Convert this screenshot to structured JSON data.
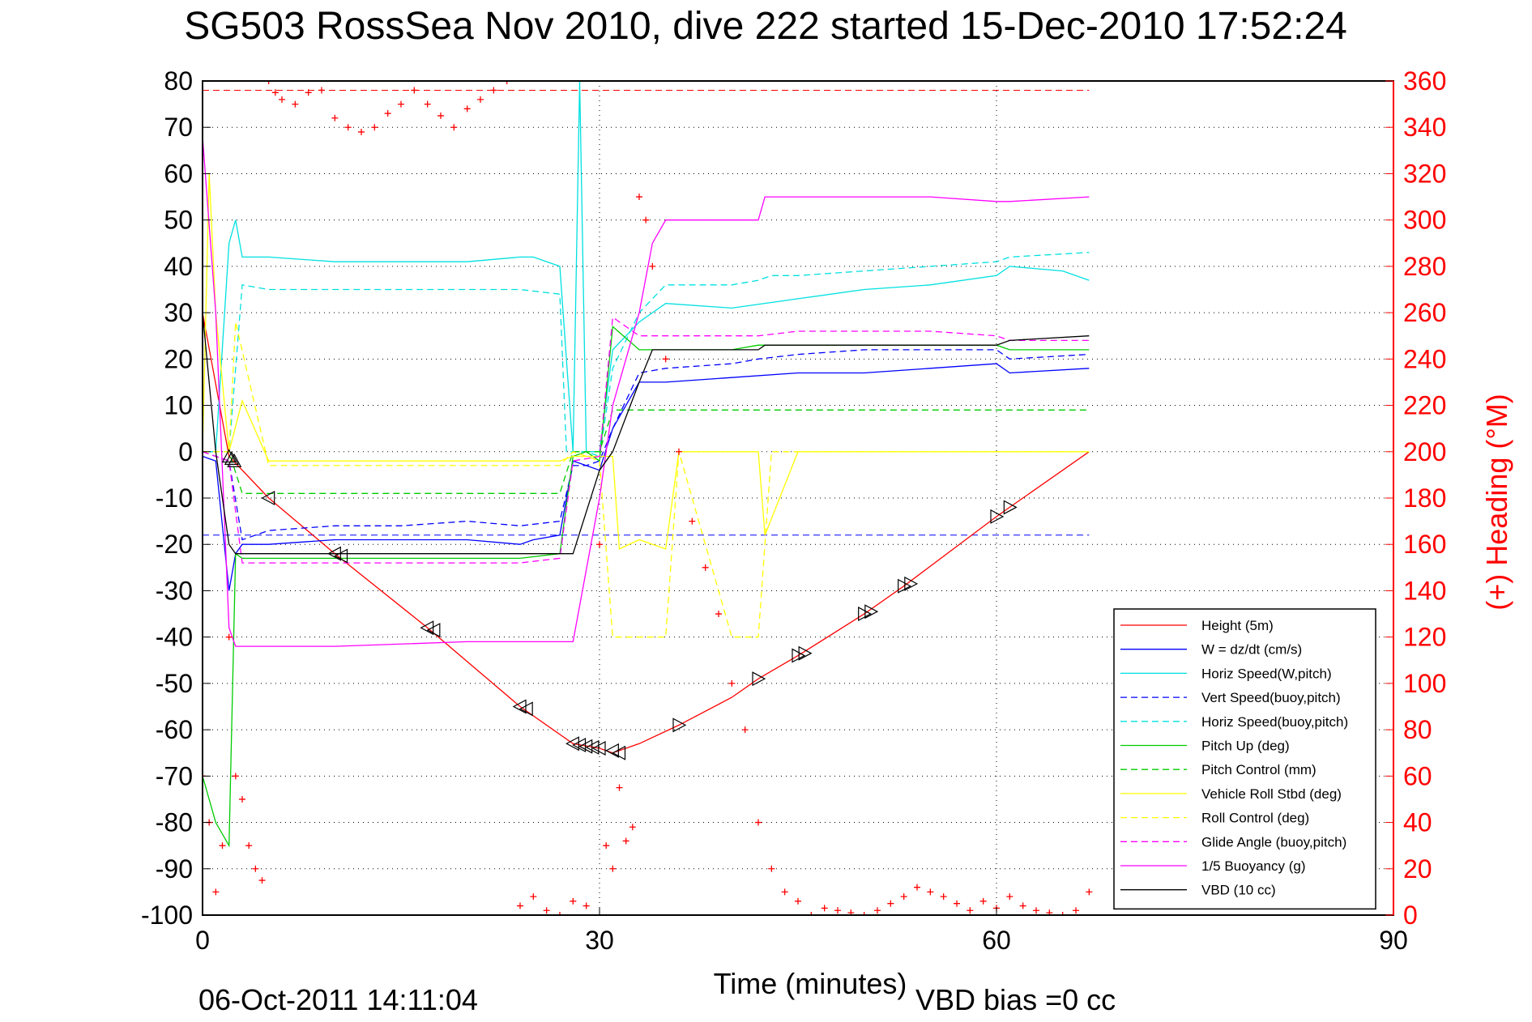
{
  "chart_data": {
    "type": "line",
    "title": "SG503 RossSea Nov 2010, dive 222 started 15-Dec-2010 17:52:24",
    "xlabel": "Time (minutes)",
    "ylabel": "",
    "y2label": "(+) Heading (°M)",
    "xlim": [
      0,
      90
    ],
    "ylim": [
      -100,
      80
    ],
    "y2lim": [
      0,
      360
    ],
    "xticks": [
      "0",
      "30",
      "60",
      "90"
    ],
    "xtick_values": [
      0,
      30,
      60,
      90
    ],
    "yticks": [
      "80",
      "70",
      "60",
      "50",
      "40",
      "30",
      "20",
      "10",
      "0",
      "-10",
      "-20",
      "-30",
      "-40",
      "-50",
      "-60",
      "-70",
      "-80",
      "-90",
      "-100"
    ],
    "ytick_values": [
      80,
      70,
      60,
      50,
      40,
      30,
      20,
      10,
      0,
      -10,
      -20,
      -30,
      -40,
      -50,
      -60,
      -70,
      -80,
      -90,
      -100
    ],
    "y2ticks": [
      "360",
      "340",
      "320",
      "300",
      "280",
      "260",
      "240",
      "220",
      "200",
      "180",
      "160",
      "140",
      "120",
      "100",
      "80",
      "60",
      "40",
      "20",
      "0"
    ],
    "y2tick_values": [
      360,
      340,
      320,
      300,
      280,
      260,
      240,
      220,
      200,
      180,
      160,
      140,
      120,
      100,
      80,
      60,
      40,
      20,
      0
    ],
    "grid": true,
    "legend_position": "bottom-right",
    "footer_date": "06-Oct-2011 14:11:04",
    "footer_bias": "VBD bias =0 cc",
    "series": [
      {
        "name": "Height (5m)",
        "color": "#ff0000",
        "style": "solid",
        "x": [
          0,
          2,
          5,
          10,
          17,
          24,
          28,
          30,
          31,
          33,
          36,
          40,
          42,
          45,
          50,
          53,
          60,
          61,
          67
        ],
        "y": [
          30,
          -1,
          -10,
          -22,
          -38,
          -55,
          -63,
          -64,
          -65,
          -63,
          -59,
          -53,
          -49,
          -44,
          -35,
          -29,
          -14,
          -12,
          0
        ]
      },
      {
        "name": "W = dz/dt (cm/s)",
        "color": "#0000ff",
        "style": "solid",
        "x": [
          0,
          1,
          2,
          2.5,
          3,
          5,
          10,
          15,
          20,
          24,
          25,
          27,
          28,
          29,
          30,
          31,
          33,
          35,
          40,
          45,
          50,
          55,
          60,
          61,
          67
        ],
        "y": [
          -1,
          -2,
          -30,
          -22,
          -20,
          -20,
          -19,
          -19,
          -19,
          -20,
          -19,
          -18,
          -2,
          -3,
          -4,
          5,
          15,
          15,
          16,
          17,
          17,
          18,
          19,
          17,
          18
        ]
      },
      {
        "name": "Horiz Speed(W,pitch)",
        "color": "#00e0e0",
        "style": "solid",
        "x": [
          0,
          1,
          2,
          2.5,
          3,
          5,
          10,
          15,
          20,
          24,
          25,
          27,
          28,
          28.5,
          29,
          30,
          31,
          33,
          35,
          40,
          45,
          50,
          55,
          60,
          61,
          65,
          67
        ],
        "y": [
          0,
          0,
          45,
          50,
          42,
          42,
          41,
          41,
          41,
          42,
          42,
          40,
          0,
          80,
          0,
          0,
          22,
          28,
          32,
          31,
          33,
          35,
          36,
          38,
          40,
          39,
          37
        ]
      },
      {
        "name": "Vert Speed(buoy,pitch)",
        "color": "#0000ff",
        "style": "dashed",
        "x": [
          0,
          2,
          3,
          5,
          10,
          15,
          20,
          24,
          27,
          28,
          29,
          30,
          31,
          33,
          35,
          40,
          42,
          45,
          50,
          55,
          60,
          61,
          67
        ],
        "y": [
          0,
          -2,
          -19,
          -17,
          -16,
          -16,
          -15,
          -16,
          -15,
          -3,
          -3,
          -2,
          5,
          17,
          18,
          19,
          20,
          21,
          22,
          22,
          22,
          20,
          21
        ]
      },
      {
        "name": "Horiz Speed(buoy,pitch)",
        "color": "#00e0e0",
        "style": "dashed",
        "x": [
          0,
          2,
          3,
          5,
          10,
          15,
          20,
          24,
          27,
          27.5,
          28,
          29,
          30,
          31,
          33,
          35,
          40,
          42,
          43,
          45,
          50,
          55,
          60,
          61,
          67
        ],
        "y": [
          0,
          0,
          36,
          35,
          35,
          35,
          35,
          35,
          34,
          0,
          0,
          0,
          -1,
          18,
          30,
          36,
          36,
          37,
          38,
          38,
          39,
          40,
          41,
          42,
          43
        ]
      },
      {
        "name": "Pitch Up (deg)",
        "color": "#00cc00",
        "style": "solid",
        "x": [
          0,
          1,
          2,
          2.5,
          3,
          5,
          10,
          15,
          20,
          24,
          27,
          28,
          29,
          30,
          31,
          33,
          35,
          40,
          42,
          45,
          50,
          55,
          60,
          61,
          67
        ],
        "y": [
          -70,
          -80,
          -85,
          -22,
          -23,
          -23,
          -23,
          -23,
          -23,
          -23,
          -22,
          -1,
          0,
          -2,
          27,
          22,
          22,
          22,
          23,
          23,
          23,
          23,
          23,
          22,
          22
        ]
      },
      {
        "name": "Pitch Control (mm)",
        "color": "#00cc00",
        "style": "dashed",
        "x": [
          0,
          2,
          3,
          27,
          28,
          29,
          30,
          31,
          67
        ],
        "y": [
          0,
          0,
          -9,
          -9,
          0,
          0,
          0,
          9,
          9
        ]
      },
      {
        "name": "Vehicle Roll Stbd (deg)",
        "color": "#ffff00",
        "style": "solid",
        "x": [
          0,
          0.5,
          1,
          2,
          3,
          5,
          10,
          15,
          20,
          24,
          25,
          27,
          28,
          29,
          30,
          31,
          31.5,
          33,
          35,
          36,
          40,
          42,
          42.5,
          45,
          50,
          55,
          60,
          61,
          65,
          67
        ],
        "y": [
          0,
          60,
          30,
          0,
          11,
          -2,
          -2,
          -2,
          -2,
          -2,
          -2,
          -2,
          -1,
          -1,
          -1,
          -1,
          -21,
          -19,
          -21,
          0,
          0,
          0,
          -18,
          0,
          0,
          0,
          0,
          0,
          0,
          0
        ]
      },
      {
        "name": "Roll Control (deg)",
        "color": "#ffff00",
        "style": "dashed",
        "x": [
          0,
          2,
          2.5,
          5,
          10,
          15,
          20,
          24,
          27,
          28,
          30,
          31,
          33,
          35,
          36,
          40,
          42,
          43,
          45,
          50,
          55,
          60,
          61,
          67
        ],
        "y": [
          0,
          0,
          28,
          -3,
          -3,
          -3,
          -3,
          -3,
          -3,
          0,
          -2,
          -40,
          -40,
          -40,
          0,
          -40,
          -40,
          0,
          0,
          0,
          0,
          0,
          0,
          0
        ]
      },
      {
        "name": "Glide Angle (buoy,pitch)",
        "color": "#ff00ff",
        "style": "dashed",
        "x": [
          0,
          2,
          3,
          5,
          10,
          15,
          20,
          24,
          27,
          28,
          30,
          31,
          33,
          35,
          40,
          42,
          45,
          50,
          55,
          60,
          61,
          67
        ],
        "y": [
          0,
          -2,
          -24,
          -24,
          -24,
          -24,
          -24,
          -24,
          -23,
          -2,
          -1,
          29,
          25,
          25,
          25,
          25,
          26,
          26,
          26,
          25,
          24,
          24
        ]
      },
      {
        "name": "1/5 Buoyancy (g)",
        "color": "#ff00ff",
        "style": "solid",
        "x": [
          0,
          1,
          2,
          2.5,
          10,
          20,
          25,
          28,
          30,
          31,
          33,
          34,
          35,
          42,
          42.5,
          45,
          50,
          55,
          60,
          61,
          67
        ],
        "y": [
          68,
          30,
          -38,
          -42,
          -42,
          -41,
          -41,
          -41,
          -10,
          10,
          30,
          45,
          50,
          50,
          55,
          55,
          55,
          55,
          54,
          54,
          55
        ]
      },
      {
        "name": "VBD (10 cc)",
        "color": "#000000",
        "style": "solid",
        "x": [
          0,
          1,
          2,
          2.5,
          10,
          20,
          25,
          28,
          30,
          31,
          33,
          34,
          35,
          40,
          42,
          42.5,
          45,
          50,
          55,
          60,
          61,
          67
        ],
        "y": [
          30,
          0,
          -20,
          -22,
          -22,
          -22,
          -22,
          -22,
          -4,
          0,
          15,
          22,
          22,
          22,
          22,
          23,
          23,
          23,
          23,
          23,
          24,
          25
        ]
      },
      {
        "name": "(+) Heading",
        "color": "#ff0000",
        "style": "markers",
        "axis": "right",
        "x": [
          0,
          0.5,
          1,
          1.5,
          2,
          2.5,
          3,
          3.5,
          4,
          4.5,
          5,
          5.5,
          6,
          7,
          8,
          9,
          10,
          11,
          12,
          13,
          14,
          15,
          16,
          17,
          18,
          19,
          20,
          21,
          22,
          23,
          24,
          25,
          26,
          27,
          28,
          29,
          30,
          30.5,
          31,
          31.5,
          32,
          32.5,
          33,
          33.5,
          34,
          35,
          36,
          37,
          38,
          39,
          40,
          41,
          42,
          43,
          44,
          45,
          46,
          47,
          48,
          49,
          50,
          51,
          52,
          53,
          54,
          55,
          56,
          57,
          58,
          59,
          60,
          61,
          62,
          63,
          64,
          65,
          66,
          67
        ],
        "y": [
          60,
          40,
          10,
          30,
          120,
          60,
          50,
          30,
          20,
          15,
          360,
          355,
          352,
          350,
          355,
          356,
          344,
          340,
          338,
          340,
          346,
          350,
          356,
          350,
          345,
          340,
          348,
          352,
          356,
          360,
          4,
          8,
          2,
          0,
          6,
          4,
          160,
          30,
          20,
          55,
          32,
          38,
          310,
          300,
          280,
          240,
          200,
          170,
          150,
          130,
          100,
          80,
          40,
          20,
          10,
          6,
          0,
          3,
          2,
          1,
          0,
          2,
          5,
          8,
          12,
          10,
          8,
          5,
          2,
          6,
          3,
          8,
          4,
          2,
          1,
          0,
          2,
          10
        ]
      }
    ],
    "markers_note": "",
    "markers": {
      "up_triangles": {
        "x": [
          2,
          2.2,
          2.4
        ],
        "y": [
          -1,
          -1.5,
          -2
        ]
      },
      "left_triangles": {
        "x": [
          5,
          10,
          10.5,
          17,
          17.5,
          24,
          24.5,
          28,
          28.5,
          29,
          29.5,
          30,
          31,
          31.5
        ],
        "y": [
          -10,
          -22,
          -22.5,
          -38,
          -38.5,
          -55,
          -55.5,
          -63,
          -63.3,
          -63.6,
          -63.8,
          -64,
          -64.5,
          -65
        ]
      },
      "right_triangles": {
        "x": [
          36,
          42,
          45,
          45.5,
          50,
          50.5,
          53,
          53.5,
          60,
          61
        ],
        "y": [
          -59,
          -49,
          -44,
          -43.5,
          -35,
          -34.5,
          -29,
          -28.5,
          -14,
          -12
        ]
      }
    },
    "hlines": [
      {
        "name": "",
        "y2": 356,
        "color": "#ff0000",
        "style": "dashed"
      },
      {
        "name": "",
        "y": -18,
        "color": "#0000ff",
        "style": "dashed",
        "x": [
          0,
          67
        ]
      }
    ]
  }
}
